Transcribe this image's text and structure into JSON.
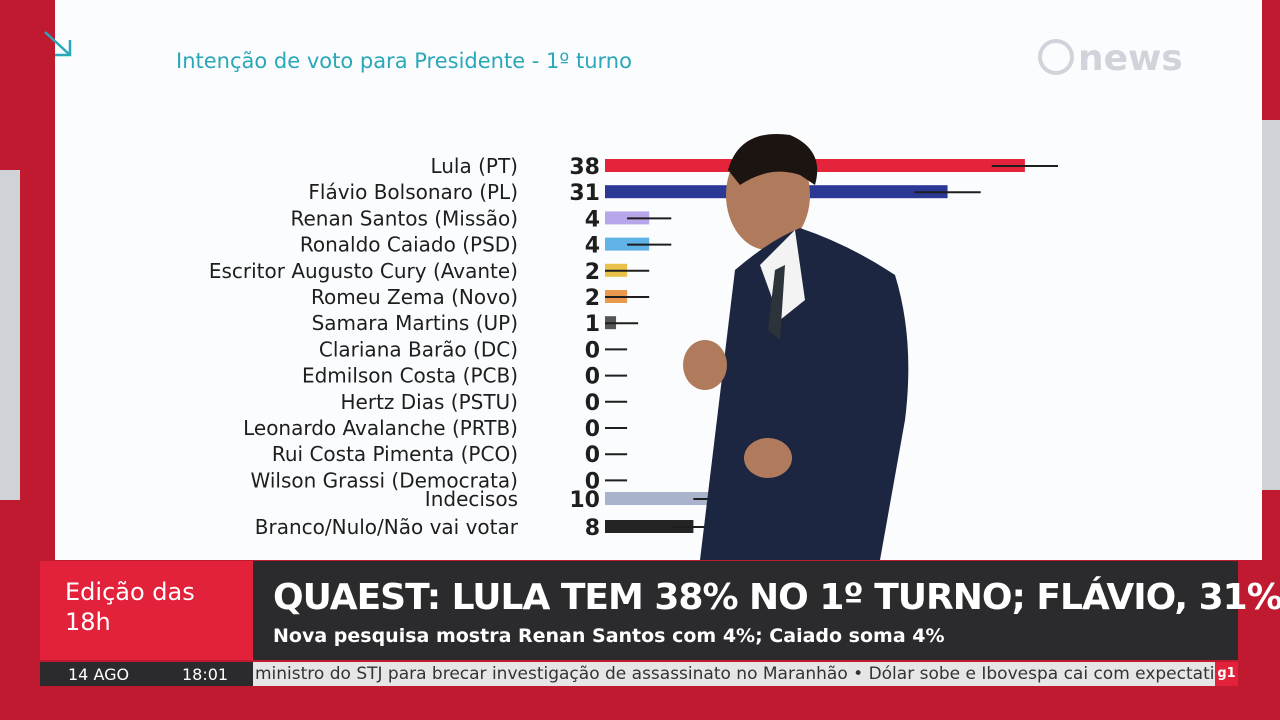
{
  "chart_data": {
    "type": "bar",
    "orientation": "horizontal",
    "title": "Intenção de voto para Presidente - 1º turno",
    "categories": [
      "Lula (PT)",
      "Flávio Bolsonaro (PL)",
      "Renan Santos (Missão)",
      "Ronaldo Caiado (PSD)",
      "Escritor Augusto Cury (Avante)",
      "Romeu Zema (Novo)",
      "Samara Martins (UP)",
      "Clariana Barão (DC)",
      "Edmilson Costa (PCB)",
      "Hertz Dias (PSTU)",
      "Leonardo Avalanche (PRTB)",
      "Rui Costa Pimenta (PCO)",
      "Wilson Grassi (Democrata)",
      "Indecisos",
      "Branco/Nulo/Não vai votar"
    ],
    "values": [
      38,
      31,
      4,
      4,
      2,
      2,
      1,
      0,
      0,
      0,
      0,
      0,
      0,
      10,
      8
    ],
    "errors": [
      3,
      3,
      2,
      2,
      2,
      2,
      2,
      2,
      2,
      2,
      2,
      2,
      2,
      2,
      2
    ],
    "colors": [
      "#e5233a",
      "#2c3896",
      "#b7a6ea",
      "#5fb3e6",
      "#e8c24a",
      "#ea9a4e",
      "#555555",
      "#555555",
      "#555555",
      "#555555",
      "#555555",
      "#555555",
      "#555555",
      "#aab3cc",
      "#242424"
    ]
  },
  "channel_logo": "news",
  "lower_third": {
    "program": "Edição das 18h",
    "headline": "QUAEST: LULA TEM 38% NO 1º TURNO; FLÁVIO, 31%",
    "subheadline": "Nova pesquisa mostra Renan Santos com 4%; Caiado soma 4%",
    "date": "14 AGO",
    "time": "18:01",
    "ticker": "ministro do STJ para brecar investigação de assassinato no Maranhão • Dólar sobe e Ibovespa cai com expectati",
    "ticker_logo": "g1"
  }
}
